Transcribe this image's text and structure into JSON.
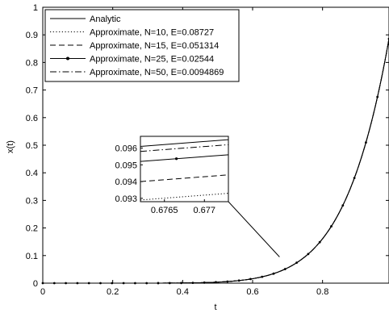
{
  "chart_data": {
    "type": "line",
    "xlabel": "t",
    "ylabel": "x(t)",
    "xlim": [
      0,
      0.99
    ],
    "ylim": [
      0,
      1
    ],
    "x_ticks": [
      "0",
      "0.2",
      "0.4",
      "0.6",
      "0.8"
    ],
    "x_tick_values": [
      0,
      0.2,
      0.4,
      0.6,
      0.8
    ],
    "y_ticks": [
      "0",
      "0.1",
      "0.2",
      "0.3",
      "0.4",
      "0.5",
      "0.6",
      "0.7",
      "0.8",
      "0.9",
      "1"
    ],
    "y_tick_values": [
      0,
      0.1,
      0.2,
      0.3,
      0.4,
      0.5,
      0.6,
      0.7,
      0.8,
      0.9,
      1
    ],
    "curve_exponent": 8,
    "curve_coefficient": 0.96,
    "series": [
      {
        "name": "Analytic",
        "style": "solid",
        "offset": 0
      },
      {
        "name": "Approximate, N=10, E=0.08727",
        "style": "dotted",
        "offset": -0.0025
      },
      {
        "name": "Approximate, N=15, E=0.051314",
        "style": "dashed",
        "offset": -0.0012
      },
      {
        "name": "Approximate, N=25, E=0.02544",
        "style": "solid-marker",
        "offset": -0.0003
      },
      {
        "name": "Approximate, N=50, E=0.0094869",
        "style": "dashdot",
        "offset": 0.0002
      }
    ],
    "legend_position": "top-left",
    "inset": {
      "xlim": [
        0.6762,
        0.6773
      ],
      "ylim": [
        0.0928,
        0.0967
      ],
      "x_ticks": [
        "0.6765",
        "0.677"
      ],
      "x_tick_values": [
        0.6765,
        0.677
      ],
      "y_ticks": [
        "0.093",
        "0.094",
        "0.095",
        "0.096"
      ],
      "y_tick_values": [
        0.093,
        0.094,
        0.095,
        0.096
      ],
      "lines": [
        {
          "series": 0,
          "y_start": 0.0961,
          "y_end": 0.0965
        },
        {
          "series": 4,
          "y_start": 0.0958,
          "y_end": 0.0962
        },
        {
          "series": 3,
          "y_start": 0.0952,
          "y_end": 0.0956
        },
        {
          "series": 2,
          "y_start": 0.094,
          "y_end": 0.0944
        },
        {
          "series": 1,
          "y_start": 0.0929,
          "y_end": 0.0933
        }
      ],
      "zoom_point": [
        0.677,
        0.095
      ]
    },
    "grid": false
  }
}
